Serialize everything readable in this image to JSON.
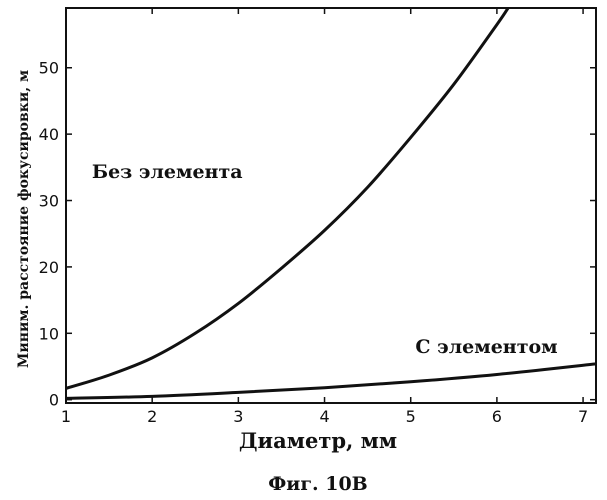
{
  "chart_data": {
    "type": "line",
    "xlabel": "Диаметр, мм",
    "ylabel": "Миним. расстояние фокусировки, м",
    "xlim": [
      1,
      7.15
    ],
    "ylim": [
      -0.5,
      59
    ],
    "x_ticks": [
      1,
      2,
      3,
      4,
      5,
      6,
      7
    ],
    "y_ticks": [
      0,
      10,
      20,
      30,
      40,
      50
    ],
    "grid": false,
    "series": [
      {
        "name": "Без элемента",
        "x": [
          1.0,
          1.5,
          2.0,
          2.5,
          3.0,
          3.5,
          4.0,
          4.5,
          5.0,
          5.5,
          6.0,
          6.13
        ],
        "y": [
          1.7,
          3.7,
          6.3,
          10.0,
          14.5,
          19.8,
          25.5,
          32.0,
          39.5,
          47.5,
          56.5,
          59.0
        ]
      },
      {
        "name": "С элементом",
        "x": [
          1.0,
          2.0,
          3.0,
          4.0,
          5.0,
          6.0,
          7.15
        ],
        "y": [
          0.2,
          0.5,
          1.1,
          1.8,
          2.7,
          3.8,
          5.4
        ]
      }
    ],
    "annotations": [
      {
        "text": "Без элемента",
        "series": 0
      },
      {
        "text": "С элементом",
        "series": 1
      }
    ]
  },
  "caption": "Фиг. 10В"
}
